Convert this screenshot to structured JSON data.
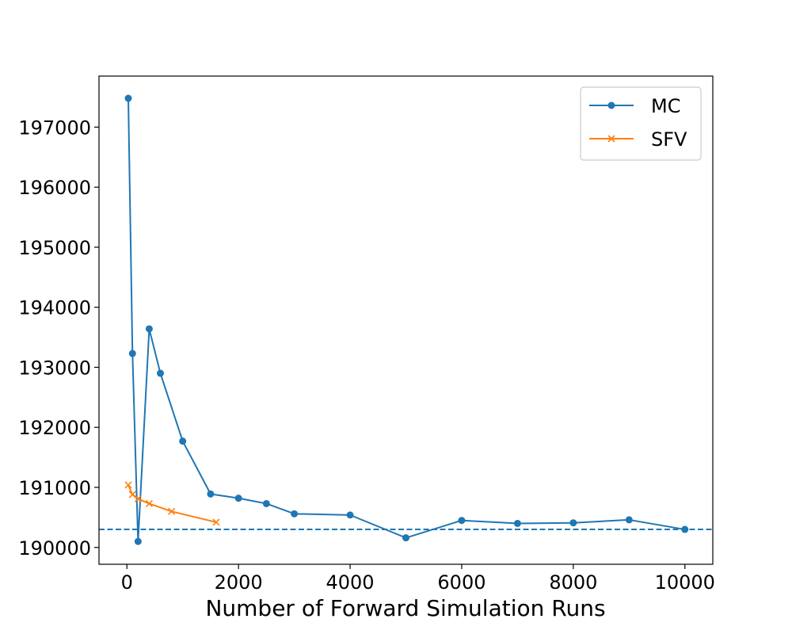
{
  "chart_data": {
    "type": "line",
    "title": "",
    "xlabel": "Number of Forward Simulation Runs",
    "ylabel": "",
    "xlim": [
      -500,
      10500
    ],
    "ylim": [
      189720,
      197850
    ],
    "x_ticks": [
      0,
      2000,
      4000,
      6000,
      8000,
      10000
    ],
    "x_tick_labels": [
      "0",
      "2000",
      "4000",
      "6000",
      "8000",
      "10000"
    ],
    "y_ticks": [
      190000,
      191000,
      192000,
      193000,
      194000,
      195000,
      196000,
      197000
    ],
    "y_tick_labels": [
      "190000",
      "191000",
      "192000",
      "193000",
      "194000",
      "195000",
      "196000",
      "197000"
    ],
    "legend_position": "top-right",
    "series": [
      {
        "name": "MC",
        "color": "#1f77b4",
        "marker": "circle",
        "x": [
          25,
          100,
          200,
          400,
          600,
          1000,
          1500,
          2000,
          2500,
          3000,
          4000,
          5000,
          6000,
          7000,
          8000,
          9000,
          10000
        ],
        "y": [
          197480,
          193230,
          190100,
          193640,
          192900,
          191770,
          190890,
          190820,
          190730,
          190560,
          190540,
          190160,
          190450,
          190400,
          190410,
          190460,
          190300
        ]
      },
      {
        "name": "SFV",
        "color": "#ff7f0e",
        "marker": "x",
        "x": [
          25,
          100,
          200,
          400,
          800,
          1600
        ],
        "y": [
          191040,
          190880,
          190810,
          190730,
          190600,
          190420
        ]
      }
    ],
    "reference_line": {
      "y": 190300,
      "style": "dashed",
      "color": "#1f77b4"
    }
  }
}
